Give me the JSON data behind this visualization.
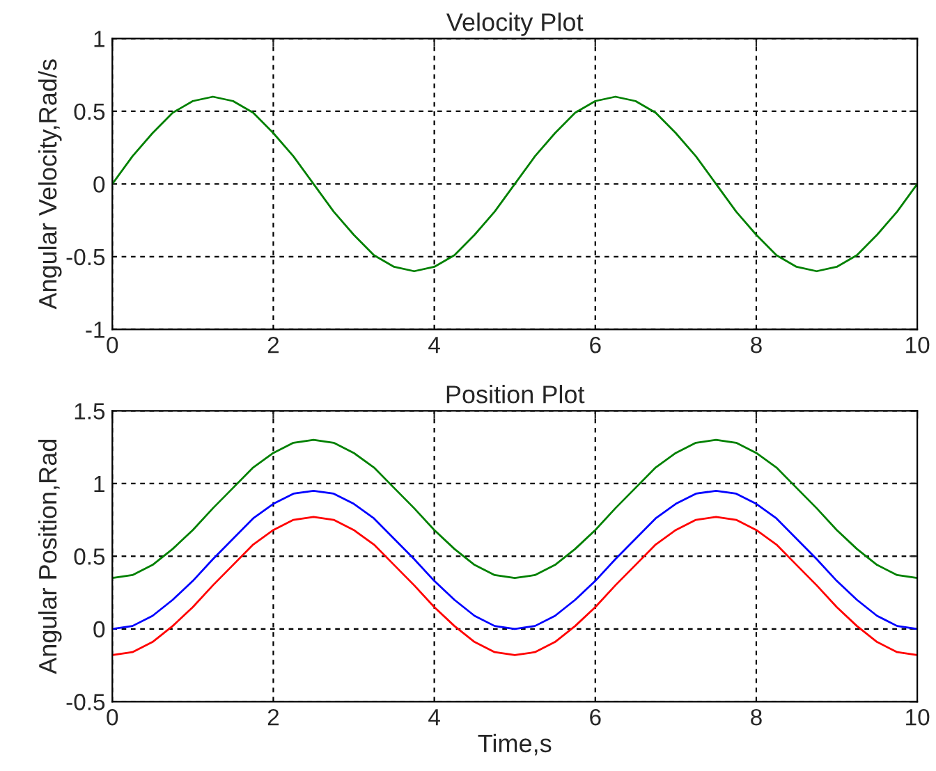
{
  "chart_data": [
    {
      "type": "line",
      "title": "Velocity Plot",
      "ylabel": "Angular Velocity,Rad/s",
      "x": [
        0,
        0.25,
        0.5,
        0.75,
        1,
        1.25,
        1.5,
        1.75,
        2,
        2.25,
        2.5,
        2.75,
        3,
        3.25,
        3.5,
        3.75,
        4,
        4.25,
        4.5,
        4.75,
        5,
        5.25,
        5.5,
        5.75,
        6,
        6.25,
        6.5,
        6.75,
        7,
        7.25,
        7.5,
        7.75,
        8,
        8.25,
        8.5,
        8.75,
        9,
        9.25,
        9.5,
        9.75,
        10
      ],
      "series": [
        {
          "color": "#008000",
          "values": [
            0,
            0.19,
            0.35,
            0.49,
            0.57,
            0.6,
            0.57,
            0.49,
            0.35,
            0.19,
            0,
            -0.19,
            -0.35,
            -0.49,
            -0.57,
            -0.6,
            -0.57,
            -0.49,
            -0.35,
            -0.19,
            0,
            0.19,
            0.35,
            0.49,
            0.57,
            0.6,
            0.57,
            0.49,
            0.35,
            0.19,
            0,
            -0.19,
            -0.35,
            -0.49,
            -0.57,
            -0.6,
            -0.57,
            -0.49,
            -0.35,
            -0.19,
            0
          ]
        }
      ],
      "xlim": [
        0,
        10
      ],
      "xticks": [
        0,
        2,
        4,
        6,
        8,
        10
      ],
      "ylim": [
        -1,
        1
      ],
      "yticks": [
        -1,
        -0.5,
        0,
        0.5,
        1
      ],
      "grid": true,
      "line_style": "solid"
    },
    {
      "type": "line",
      "title": "Position Plot",
      "xlabel": "Time,s",
      "ylabel": "Angular Position,Rad",
      "x": [
        0,
        0.25,
        0.5,
        0.75,
        1,
        1.25,
        1.5,
        1.75,
        2,
        2.25,
        2.5,
        2.75,
        3,
        3.25,
        3.5,
        3.75,
        4,
        4.25,
        4.5,
        4.75,
        5,
        5.25,
        5.5,
        5.75,
        6,
        6.25,
        6.5,
        6.75,
        7,
        7.25,
        7.5,
        7.75,
        8,
        8.25,
        8.5,
        8.75,
        9,
        9.25,
        9.5,
        9.75,
        10
      ],
      "series": [
        {
          "color": "#008000",
          "values": [
            0.35,
            0.37,
            0.44,
            0.55,
            0.68,
            0.83,
            0.97,
            1.11,
            1.21,
            1.28,
            1.3,
            1.28,
            1.21,
            1.11,
            0.97,
            0.83,
            0.68,
            0.55,
            0.44,
            0.37,
            0.35,
            0.37,
            0.44,
            0.55,
            0.68,
            0.83,
            0.97,
            1.11,
            1.21,
            1.28,
            1.3,
            1.28,
            1.21,
            1.11,
            0.97,
            0.83,
            0.68,
            0.55,
            0.44,
            0.37,
            0.35
          ]
        },
        {
          "color": "#0000ff",
          "values": [
            0,
            0.02,
            0.09,
            0.2,
            0.33,
            0.48,
            0.62,
            0.76,
            0.86,
            0.93,
            0.95,
            0.93,
            0.86,
            0.76,
            0.62,
            0.48,
            0.33,
            0.2,
            0.09,
            0.02,
            0,
            0.02,
            0.09,
            0.2,
            0.33,
            0.48,
            0.62,
            0.76,
            0.86,
            0.93,
            0.95,
            0.93,
            0.86,
            0.76,
            0.62,
            0.48,
            0.33,
            0.2,
            0.09,
            0.02,
            0
          ]
        },
        {
          "color": "#ff0000",
          "values": [
            -0.18,
            -0.16,
            -0.09,
            0.02,
            0.15,
            0.3,
            0.44,
            0.58,
            0.68,
            0.75,
            0.77,
            0.75,
            0.68,
            0.58,
            0.44,
            0.3,
            0.15,
            0.02,
            -0.09,
            -0.16,
            -0.18,
            -0.16,
            -0.09,
            0.02,
            0.15,
            0.3,
            0.44,
            0.58,
            0.68,
            0.75,
            0.77,
            0.75,
            0.68,
            0.58,
            0.44,
            0.3,
            0.15,
            0.02,
            -0.09,
            -0.16,
            -0.18
          ]
        }
      ],
      "xlim": [
        0,
        10
      ],
      "xticks": [
        0,
        2,
        4,
        6,
        8,
        10
      ],
      "ylim": [
        -0.5,
        1.5
      ],
      "yticks": [
        -0.5,
        0,
        0.5,
        1,
        1.5
      ],
      "grid": true,
      "line_style": "solid"
    }
  ]
}
